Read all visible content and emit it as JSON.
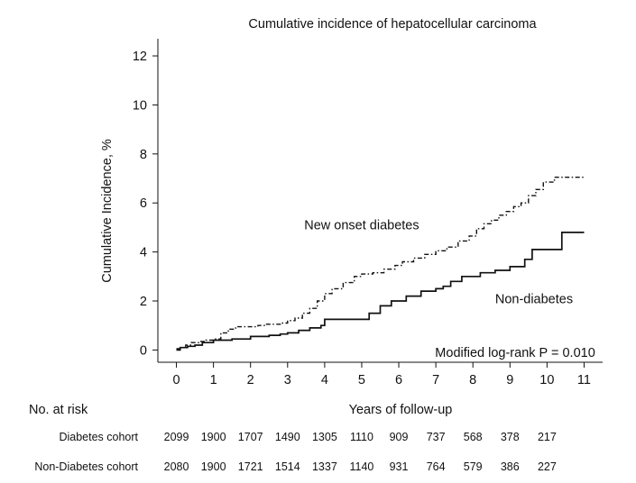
{
  "chart_data": {
    "type": "line",
    "title": "Cumulative incidence of hepatocellular carcinoma",
    "xlabel": "Years of follow-up",
    "ylabel": "Cumulative Incidence, %",
    "xlim": [
      -0.5,
      11.5
    ],
    "ylim": [
      -0.5,
      12.7
    ],
    "x_ticks": [
      "0",
      "1",
      "2",
      "3",
      "4",
      "5",
      "6",
      "7",
      "8",
      "9",
      "10",
      "11"
    ],
    "y_ticks": [
      "0",
      "2",
      "4",
      "6",
      "8",
      "10",
      "12"
    ],
    "grid": false,
    "series": [
      {
        "name": "New onset diabetes",
        "line_style": "dash-dot",
        "x": [
          0,
          0.1,
          0.25,
          0.4,
          0.6,
          0.8,
          1.0,
          1.2,
          1.4,
          1.6,
          1.8,
          2.0,
          2.2,
          2.4,
          2.6,
          2.8,
          3.0,
          3.2,
          3.4,
          3.6,
          3.8,
          4.0,
          4.2,
          4.5,
          4.8,
          5.0,
          5.3,
          5.6,
          5.9,
          6.1,
          6.4,
          6.7,
          7.0,
          7.3,
          7.6,
          7.9,
          8.1,
          8.3,
          8.5,
          8.7,
          8.9,
          9.1,
          9.3,
          9.5,
          9.7,
          9.9,
          10.2,
          10.5,
          11.0
        ],
        "y": [
          0.05,
          0.1,
          0.2,
          0.3,
          0.35,
          0.4,
          0.45,
          0.7,
          0.85,
          0.95,
          0.95,
          0.95,
          1.0,
          1.05,
          1.05,
          1.1,
          1.2,
          1.3,
          1.5,
          1.7,
          2.0,
          2.3,
          2.5,
          2.75,
          3.0,
          3.1,
          3.15,
          3.3,
          3.45,
          3.6,
          3.75,
          3.9,
          4.05,
          4.2,
          4.45,
          4.65,
          4.95,
          5.15,
          5.3,
          5.5,
          5.65,
          5.85,
          6.0,
          6.3,
          6.55,
          6.85,
          7.05,
          7.05,
          7.05
        ]
      },
      {
        "name": "Non-diabetes",
        "line_style": "solid",
        "x": [
          0,
          0.1,
          0.3,
          0.5,
          0.7,
          1.0,
          1.5,
          2.0,
          2.5,
          2.8,
          3.0,
          3.3,
          3.6,
          3.9,
          4.0,
          4.5,
          5.0,
          5.2,
          5.5,
          5.8,
          6.2,
          6.6,
          7.0,
          7.2,
          7.4,
          7.7,
          8.2,
          8.6,
          9.0,
          9.4,
          9.6,
          10.4,
          11.0
        ],
        "y": [
          0.0,
          0.1,
          0.15,
          0.2,
          0.3,
          0.4,
          0.45,
          0.55,
          0.6,
          0.65,
          0.7,
          0.8,
          0.9,
          1.0,
          1.25,
          1.25,
          1.25,
          1.5,
          1.8,
          2.0,
          2.2,
          2.4,
          2.5,
          2.6,
          2.8,
          3.0,
          3.15,
          3.25,
          3.4,
          3.7,
          4.1,
          4.8,
          4.8
        ]
      }
    ],
    "annotations": [
      {
        "text": "New onset diabetes",
        "x": 5.0,
        "y": 5.1
      },
      {
        "text": "Non-diabetes",
        "x": 8.6,
        "y": 2.1
      },
      {
        "text": "Modified log-rank P = 0.010",
        "x": 11.3,
        "y": -0.1
      }
    ],
    "risk_table": {
      "title": "No. at risk",
      "rows": [
        {
          "label": "Diabetes cohort",
          "values": [
            "2099",
            "1900",
            "1707",
            "1490",
            "1305",
            "1110",
            "909",
            "737",
            "568",
            "378",
            "217"
          ]
        },
        {
          "label": "Non-Diabetes cohort",
          "values": [
            "2080",
            "1900",
            "1721",
            "1514",
            "1337",
            "1140",
            "931",
            "764",
            "579",
            "386",
            "227"
          ]
        }
      ]
    }
  }
}
